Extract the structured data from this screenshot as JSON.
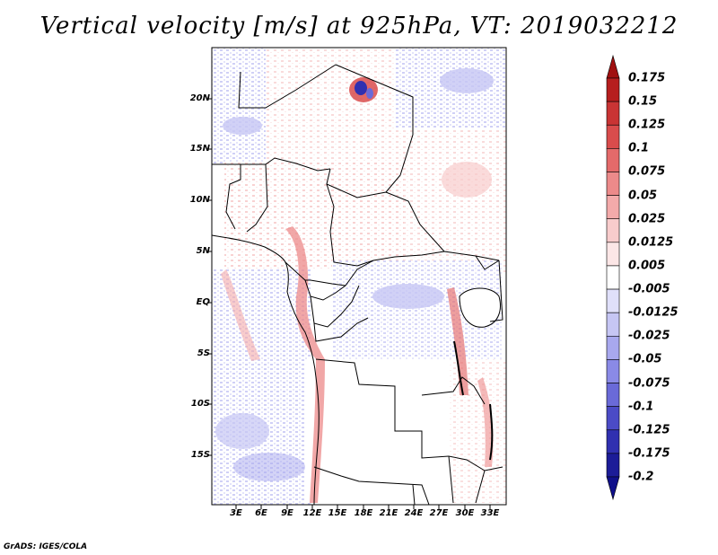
{
  "title": "Vertical velocity [m/s] at 925hPa, VT: 2019032212",
  "footer": "GrADS: IGES/COLA",
  "map": {
    "y_tick_labels": [
      "20N",
      "15N",
      "10N",
      "5N",
      "EQ",
      "5S",
      "10S",
      "15S"
    ],
    "x_tick_labels": [
      "3E",
      "6E",
      "9E",
      "12E",
      "15E",
      "18E",
      "21E",
      "24E",
      "27E",
      "30E",
      "33E"
    ]
  },
  "colorbar": {
    "labels": [
      "0.175",
      "0.15",
      "0.125",
      "0.1",
      "0.075",
      "0.05",
      "0.025",
      "0.0125",
      "0.005",
      "-0.005",
      "-0.0125",
      "-0.025",
      "-0.05",
      "-0.075",
      "-0.1",
      "-0.125",
      "-0.175",
      "-0.2"
    ],
    "colors": [
      "#a01010",
      "#b61e1e",
      "#c93434",
      "#d94c4c",
      "#e46a6a",
      "#ec8a8a",
      "#f3aaaa",
      "#f8cccc",
      "#fce6e6",
      "#ffffff",
      "#e0e0fa",
      "#c6c6f4",
      "#a8a8ee",
      "#8a8ae6",
      "#6a6ad8",
      "#4b4bc6",
      "#3030b0",
      "#1c1c98",
      "#10108a"
    ]
  }
}
